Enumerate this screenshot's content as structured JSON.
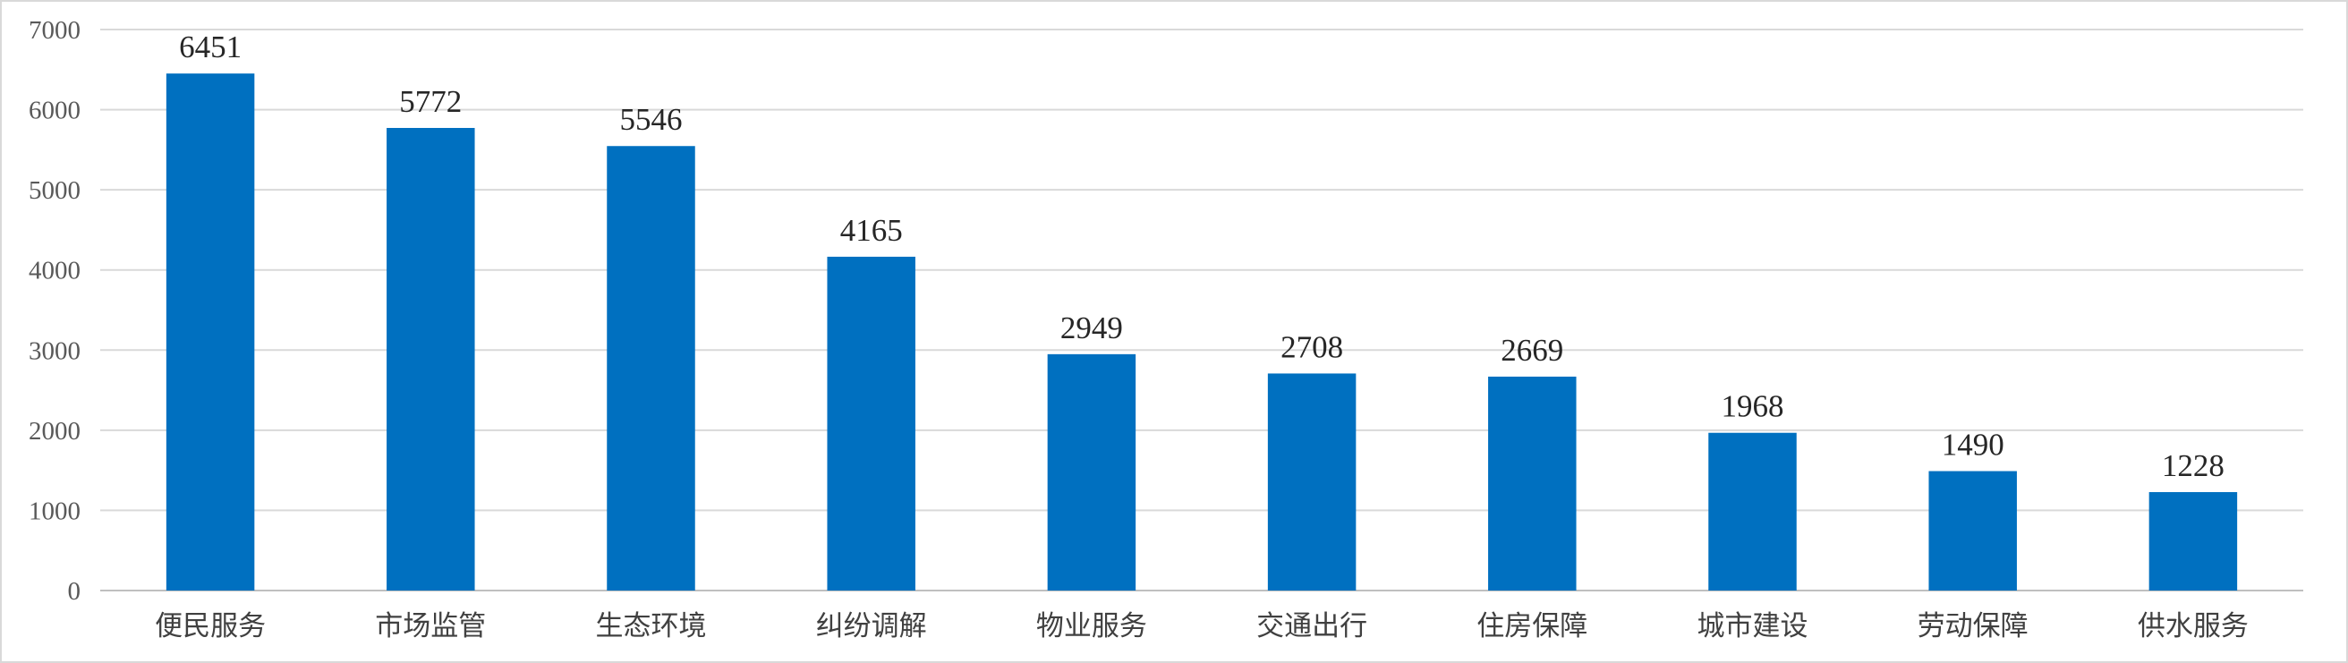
{
  "chart_data": {
    "type": "bar",
    "title": "",
    "xlabel": "",
    "ylabel": "",
    "categories": [
      "便民服务",
      "市场监管",
      "生态环境",
      "纠纷调解",
      "物业服务",
      "交通出行",
      "住房保障",
      "城市建设",
      "劳动保障",
      "供水服务"
    ],
    "values": [
      6451,
      5772,
      5546,
      4165,
      2949,
      2708,
      2669,
      1968,
      1490,
      1228
    ],
    "ylim": [
      0,
      7000
    ],
    "yticks": [
      0,
      1000,
      2000,
      3000,
      4000,
      5000,
      6000,
      7000
    ],
    "grid": true,
    "legend": "none",
    "data_labels": true,
    "colors": {
      "bar": "#0070C0",
      "grid": "#D9D9D9",
      "text": "#404040"
    }
  }
}
